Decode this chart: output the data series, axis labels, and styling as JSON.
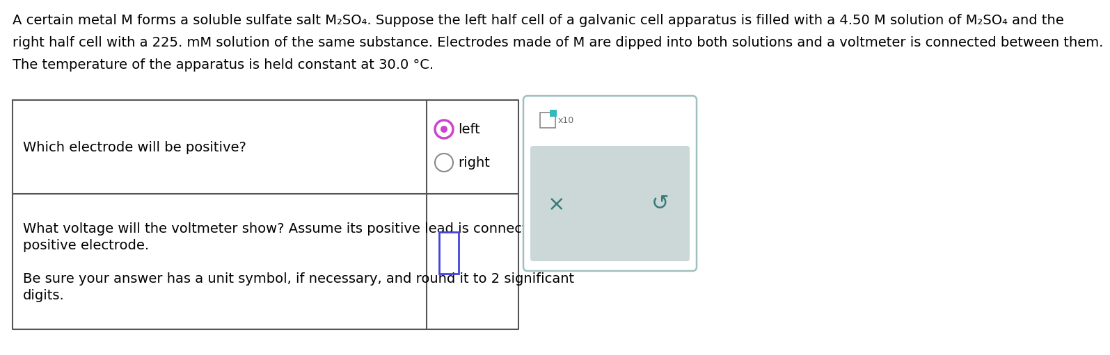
{
  "background_color": "#ffffff",
  "paragraph_text": [
    "A certain metal M forms a soluble sulfate salt M₂SO₄. Suppose the left half cell of a galvanic cell apparatus is filled with a 4.50 M solution of M₂SO₄ and the",
    "right half cell with a 225. mM solution of the same substance. Electrodes made of M are dipped into both solutions and a voltmeter is connected between them.",
    "The temperature of the apparatus is held constant at 30.0 °C."
  ],
  "row1_question": "Which electrode will be positive?",
  "row1_options": [
    "left",
    "right"
  ],
  "row1_selected": 0,
  "row2_question_lines": [
    "What voltage will the voltmeter show? Assume its positive lead is connected to the",
    "positive electrode.",
    "",
    "Be sure your answer has a unit symbol, if necessary, and round it to 2 significant",
    "digits."
  ],
  "text_color": "#000000",
  "table_border_color": "#555555",
  "radio_selected_color": "#cc44cc",
  "radio_unselected_color": "#888888",
  "answer_box_color": "#4444dd",
  "panel_border_color": "#a0bfbf",
  "panel_bg_color": "#ffffff",
  "button_area_bg": "#ccd8d8",
  "x_button_color": "#3a7a7a",
  "undo_button_color": "#3a7a7a",
  "checkbox_border_color": "#888888",
  "checkbox_inner_color": "#33bbbb",
  "font_size_para": 14.0,
  "font_size_table": 14.0
}
